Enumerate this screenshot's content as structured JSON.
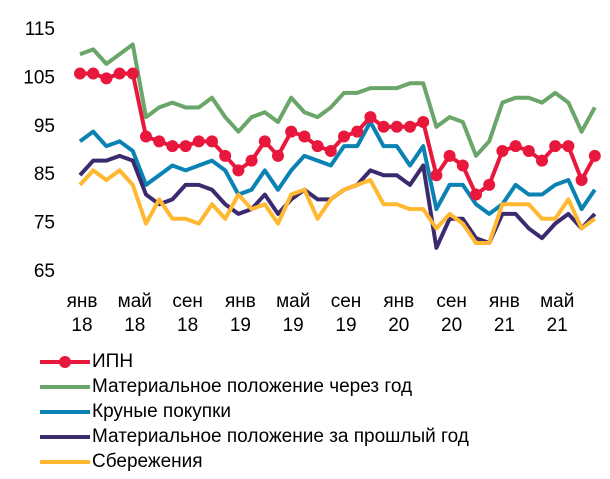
{
  "chart_data": {
    "type": "line",
    "categories": [
      "янв 18",
      null,
      null,
      null,
      "май 18",
      null,
      null,
      null,
      "сен 18",
      null,
      null,
      null,
      "янв 19",
      null,
      null,
      null,
      "май 19",
      null,
      null,
      null,
      "сен 19",
      null,
      null,
      null,
      "янв 20",
      null,
      null,
      null,
      "сен 20",
      null,
      null,
      null,
      "янв 21",
      null,
      null,
      null,
      "май 21",
      null,
      null,
      null
    ],
    "ylim": [
      65,
      115
    ],
    "yticks": [
      65,
      75,
      85,
      95,
      105,
      115
    ],
    "grid": false,
    "series": [
      {
        "name": "ИПН",
        "color": "#e8173c",
        "marker": true,
        "values": [
          106,
          106,
          105,
          106,
          106,
          93,
          92,
          91,
          91,
          92,
          92,
          89,
          86,
          88,
          92,
          89,
          94,
          93,
          91,
          90,
          93,
          94,
          97,
          95,
          95,
          95,
          96,
          85,
          89,
          87,
          81,
          83,
          90,
          91,
          90,
          88,
          91,
          91,
          84,
          89
        ]
      },
      {
        "name": "Материальное положение через год",
        "color": "#6aa56a",
        "values": [
          110,
          111,
          108,
          110,
          112,
          97,
          99,
          100,
          99,
          99,
          101,
          97,
          94,
          97,
          98,
          96,
          101,
          98,
          97,
          99,
          102,
          102,
          103,
          103,
          103,
          104,
          104,
          95,
          97,
          96,
          89,
          92,
          100,
          101,
          101,
          100,
          102,
          100,
          94,
          99
        ]
      },
      {
        "name": "Круные покупки",
        "color": "#0a82b4",
        "values": [
          92,
          94,
          91,
          92,
          90,
          83,
          85,
          87,
          86,
          87,
          88,
          86,
          81,
          82,
          86,
          82,
          86,
          89,
          88,
          87,
          91,
          91,
          96,
          91,
          91,
          87,
          91,
          78,
          83,
          83,
          79,
          77,
          79,
          83,
          81,
          81,
          83,
          84,
          78,
          82
        ]
      },
      {
        "name": "Материальное положение за прошлый год",
        "color": "#3c2a6e",
        "values": [
          85,
          88,
          88,
          89,
          88,
          81,
          79,
          80,
          83,
          83,
          82,
          79,
          77,
          78,
          81,
          77,
          80,
          82,
          80,
          80,
          82,
          83,
          86,
          85,
          85,
          83,
          87,
          70,
          76,
          76,
          72,
          71,
          77,
          77,
          74,
          72,
          75,
          77,
          74,
          77
        ]
      },
      {
        "name": "Сбережения",
        "color": "#ffb830",
        "values": [
          83,
          86,
          84,
          86,
          83,
          75,
          80,
          76,
          76,
          75,
          79,
          76,
          81,
          78,
          79,
          75,
          81,
          82,
          76,
          80,
          82,
          83,
          84,
          79,
          79,
          78,
          78,
          74,
          77,
          75,
          71,
          71,
          79,
          79,
          79,
          76,
          76,
          80,
          74,
          76
        ]
      }
    ]
  }
}
